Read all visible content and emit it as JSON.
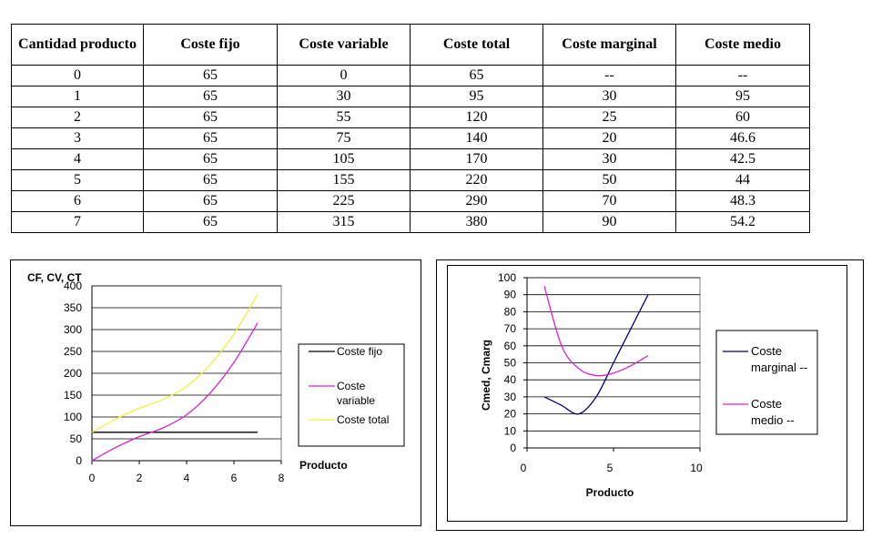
{
  "table": {
    "headers": [
      "Cantidad producto",
      "Coste fijo",
      "Coste variable",
      "Coste total",
      "Coste marginal",
      "Coste medio"
    ],
    "rows": [
      [
        "0",
        "65",
        "0",
        "65",
        "--",
        "--"
      ],
      [
        "1",
        "65",
        "30",
        "95",
        "30",
        "95"
      ],
      [
        "2",
        "65",
        "55",
        "120",
        "25",
        "60"
      ],
      [
        "3",
        "65",
        "75",
        "140",
        "20",
        "46.6"
      ],
      [
        "4",
        "65",
        "105",
        "170",
        "30",
        "42.5"
      ],
      [
        "5",
        "65",
        "155",
        "220",
        "50",
        "44"
      ],
      [
        "6",
        "65",
        "225",
        "290",
        "70",
        "48.3"
      ],
      [
        "7",
        "65",
        "315",
        "380",
        "90",
        "54.2"
      ]
    ]
  },
  "chart_data": [
    {
      "type": "line",
      "title": "",
      "ylabel": "CF, CV, CT",
      "xlabel": "Producto",
      "xlim": [
        0,
        8
      ],
      "ylim": [
        0,
        400
      ],
      "xticks": [
        0,
        2,
        4,
        6,
        8
      ],
      "yticks": [
        0,
        50,
        100,
        150,
        200,
        250,
        300,
        350,
        400
      ],
      "grid": true,
      "legend_position": "right",
      "x": [
        0,
        1,
        2,
        3,
        4,
        5,
        6,
        7
      ],
      "series": [
        {
          "name": "Coste fijo",
          "values": [
            65,
            65,
            65,
            65,
            65,
            65,
            65,
            65
          ],
          "color": "#000000"
        },
        {
          "name": "Coste variable",
          "values": [
            0,
            30,
            55,
            75,
            105,
            155,
            225,
            315
          ],
          "color": "#e020d0"
        },
        {
          "name": "Coste total",
          "values": [
            65,
            95,
            120,
            140,
            170,
            220,
            290,
            380
          ],
          "color": "#f0f040"
        }
      ]
    },
    {
      "type": "line",
      "title": "",
      "ylabel": "Cmed, Cmarg",
      "xlabel": "Producto",
      "xlim": [
        0,
        10
      ],
      "ylim": [
        0,
        100
      ],
      "xticks": [
        0,
        5,
        10
      ],
      "yticks": [
        0,
        10,
        20,
        30,
        40,
        50,
        60,
        70,
        80,
        90,
        100
      ],
      "grid": true,
      "legend_position": "right",
      "series": [
        {
          "name": "Coste marginal --",
          "x": [
            1,
            2,
            3,
            4,
            5,
            6,
            7
          ],
          "values": [
            30,
            25,
            20,
            30,
            50,
            70,
            90
          ],
          "color": "#000080"
        },
        {
          "name": "Coste medio --",
          "x": [
            1,
            2,
            3,
            4,
            5,
            6,
            7
          ],
          "values": [
            95,
            60,
            46.6,
            42.5,
            44,
            48.3,
            54.2
          ],
          "color": "#e020d0"
        }
      ]
    }
  ]
}
